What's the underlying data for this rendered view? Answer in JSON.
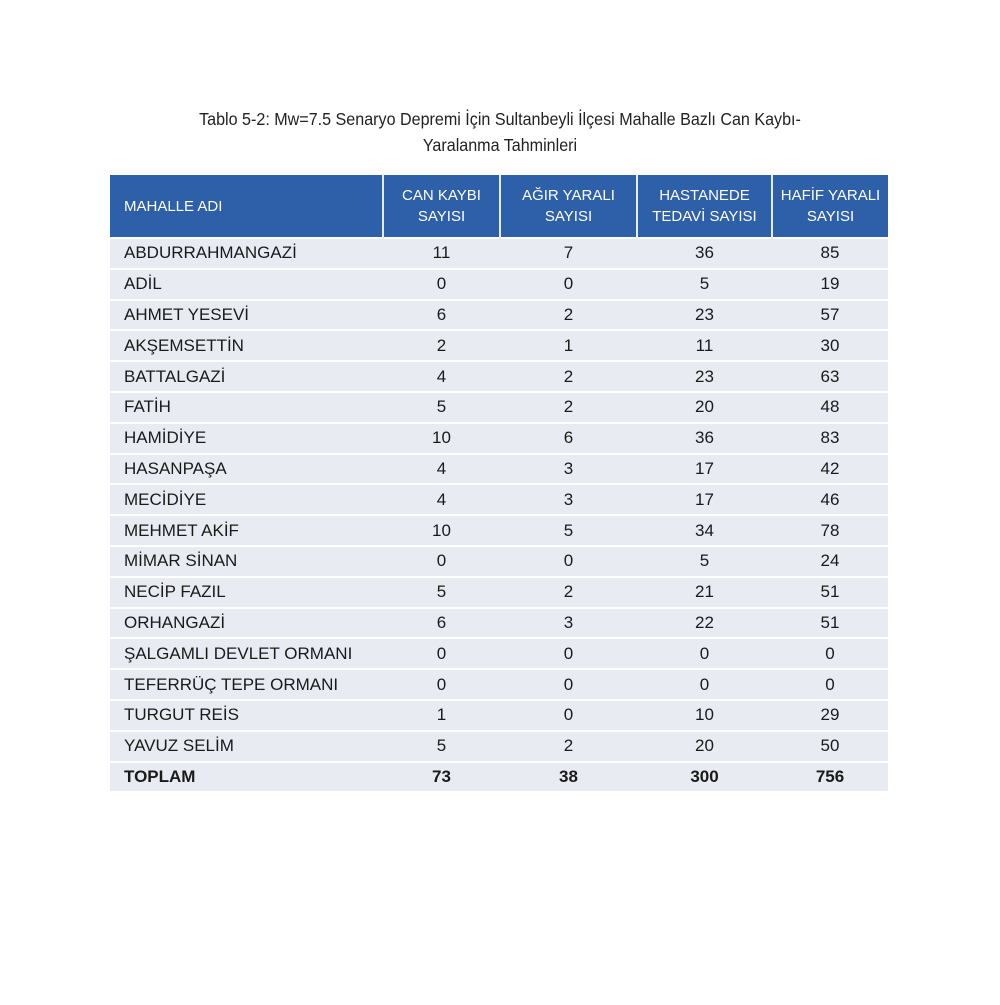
{
  "title_line1": "Tablo 5-2: Mw=7.5 Senaryo Depremi İçin Sultanbeyli İlçesi Mahalle Bazlı Can Kaybı-",
  "title_line2": "Yaralanma Tahminleri",
  "headers": {
    "name": "MAHALLE ADI",
    "can_kaybi": [
      "CAN KAYBI",
      "SAYISI"
    ],
    "agir_yarali": [
      "AĞIR YARALI",
      "SAYISI"
    ],
    "hastanede": [
      "HASTANEDE",
      "TEDAVİ SAYISI"
    ],
    "hafif_yarali": [
      "HAFİF YARALI",
      "SAYISI"
    ]
  },
  "rows": [
    [
      "ABDURRAHMANGAZİ",
      "11",
      "7",
      "36",
      "85"
    ],
    [
      "ADİL",
      "0",
      "0",
      "5",
      "19"
    ],
    [
      "AHMET YESEVİ",
      "6",
      "2",
      "23",
      "57"
    ],
    [
      "AKŞEMSETTİN",
      "2",
      "1",
      "11",
      "30"
    ],
    [
      "BATTALGAZİ",
      "4",
      "2",
      "23",
      "63"
    ],
    [
      "FATİH",
      "5",
      "2",
      "20",
      "48"
    ],
    [
      "HAMİDİYE",
      "10",
      "6",
      "36",
      "83"
    ],
    [
      "HASANPAŞA",
      "4",
      "3",
      "17",
      "42"
    ],
    [
      "MECİDİYE",
      "4",
      "3",
      "17",
      "46"
    ],
    [
      "MEHMET AKİF",
      "10",
      "5",
      "34",
      "78"
    ],
    [
      "MİMAR SİNAN",
      "0",
      "0",
      "5",
      "24"
    ],
    [
      "NECİP FAZIL",
      "5",
      "2",
      "21",
      "51"
    ],
    [
      "ORHANGAZİ",
      "6",
      "3",
      "22",
      "51"
    ],
    [
      "ŞALGAMLI DEVLET ORMANI",
      "0",
      "0",
      "0",
      "0"
    ],
    [
      "TEFERRÜÇ TEPE ORMANI",
      "0",
      "0",
      "0",
      "0"
    ],
    [
      "TURGUT REİS",
      "1",
      "0",
      "10",
      "29"
    ],
    [
      "YAVUZ SELİM",
      "5",
      "2",
      "20",
      "50"
    ]
  ],
  "total": [
    "TOPLAM",
    "73",
    "38",
    "300",
    "756"
  ],
  "colors": {
    "header_bg": "#2e5fa9",
    "row_bg": "#e8ecf2"
  }
}
